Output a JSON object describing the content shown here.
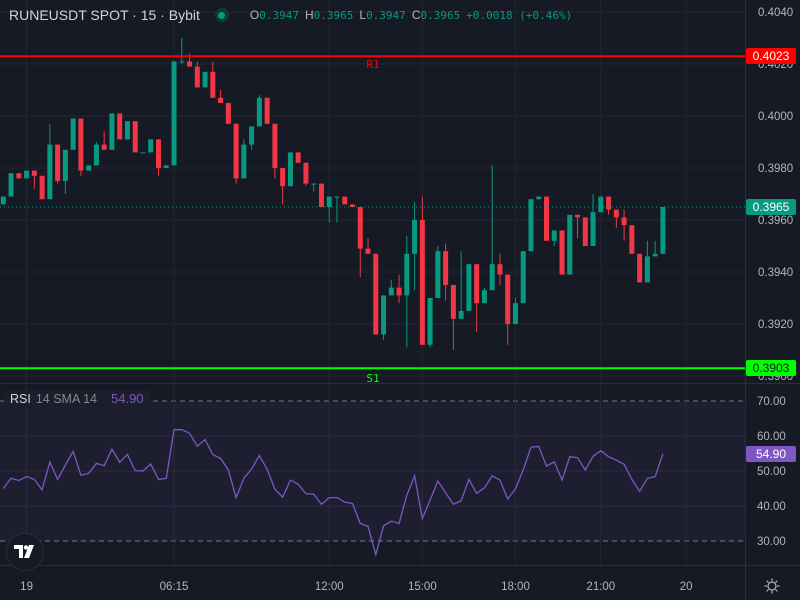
{
  "header": {
    "symbol": "RUNEUSDT SPOT · 15 · Bybit",
    "ohlc": {
      "o_label": "O",
      "open": "0.3947",
      "h_label": "H",
      "high": "0.3965",
      "l_label": "L",
      "low": "0.3947",
      "c_label": "C",
      "close": "0.3965",
      "change": "+0.0018 (+0.46%)"
    },
    "status_icon": "market-open-dot-icon"
  },
  "colors": {
    "up": "#089981",
    "down": "#f23645",
    "rsi": "#7e57c2",
    "resistance": "#ff0000",
    "support": "#00ff00",
    "background": "#161a25",
    "grid": "#242733"
  },
  "levels": [
    {
      "name": "R1",
      "label": "R1",
      "price": 0.4023,
      "tag": "0.4023",
      "color": "#ff0000"
    },
    {
      "name": "S1",
      "label": "S1",
      "price": 0.3903,
      "tag": "0.3903",
      "color": "#00ff00"
    }
  ],
  "last_price": {
    "price": 0.3965,
    "tag": "0.3965",
    "color": "#089981"
  },
  "rsi": {
    "name": "RSI",
    "params": "14 SMA 14",
    "value": "54.90",
    "upper_band": 70,
    "lower_band": 30
  },
  "bottom": {
    "logo": "TV",
    "settings_icon": "gear-icon"
  },
  "chart_data": [
    {
      "type": "candlestick",
      "timeframe": "15",
      "ylim": [
        0.3897,
        0.4044
      ],
      "y_ticks": [
        "0.4040",
        "0.4020",
        "0.4000",
        "0.3980",
        "0.3960",
        "0.3940",
        "0.3920",
        "0.3900"
      ],
      "y_tick_values": [
        0.404,
        0.402,
        0.4,
        0.398,
        0.396,
        0.394,
        0.392,
        0.39
      ],
      "x_ticks": [
        {
          "label": "19",
          "candle": 3
        },
        {
          "label": "06:15",
          "candle": 22
        },
        {
          "label": "12:00",
          "candle": 42
        },
        {
          "label": "15:00",
          "candle": 54
        },
        {
          "label": "18:00",
          "candle": 66
        },
        {
          "label": "21:00",
          "candle": 77
        },
        {
          "label": "20",
          "candle": 88
        }
      ],
      "grid": true,
      "ohlc_columns": [
        "open",
        "high",
        "low",
        "close"
      ],
      "candles": [
        [
          0.3966,
          0.3969,
          0.3966,
          0.3969
        ],
        [
          0.3969,
          0.3978,
          0.3969,
          0.3978
        ],
        [
          0.3978,
          0.3978,
          0.3976,
          0.3976
        ],
        [
          0.3976,
          0.3979,
          0.3976,
          0.3979
        ],
        [
          0.3979,
          0.3979,
          0.3972,
          0.3977
        ],
        [
          0.3977,
          0.3977,
          0.3968,
          0.3968
        ],
        [
          0.3968,
          0.3997,
          0.3968,
          0.3989
        ],
        [
          0.3989,
          0.3989,
          0.3974,
          0.3975
        ],
        [
          0.3975,
          0.3987,
          0.397,
          0.3987
        ],
        [
          0.3987,
          0.3999,
          0.3987,
          0.3999
        ],
        [
          0.3999,
          0.3999,
          0.3977,
          0.3979
        ],
        [
          0.3979,
          0.3981,
          0.3979,
          0.3981
        ],
        [
          0.3981,
          0.399,
          0.3981,
          0.3989
        ],
        [
          0.3989,
          0.3994,
          0.3987,
          0.3987
        ],
        [
          0.3987,
          0.4001,
          0.3987,
          0.4001
        ],
        [
          0.4001,
          0.4001,
          0.3991,
          0.3991
        ],
        [
          0.3991,
          0.3998,
          0.3991,
          0.3998
        ],
        [
          0.3998,
          0.3998,
          0.3986,
          0.3986
        ],
        [
          0.3986,
          0.3986,
          0.3986,
          0.3986
        ],
        [
          0.3986,
          0.3991,
          0.3986,
          0.3991
        ],
        [
          0.3991,
          0.3991,
          0.3977,
          0.398
        ],
        [
          0.398,
          0.3981,
          0.398,
          0.3981
        ],
        [
          0.3981,
          0.4021,
          0.3981,
          0.4021
        ],
        [
          0.4021,
          0.403,
          0.402,
          0.4021
        ],
        [
          0.4021,
          0.4024,
          0.4019,
          0.4019
        ],
        [
          0.4019,
          0.4021,
          0.4011,
          0.4011
        ],
        [
          0.4011,
          0.4017,
          0.4011,
          0.4017
        ],
        [
          0.4017,
          0.4021,
          0.4007,
          0.4007
        ],
        [
          0.4007,
          0.401,
          0.4005,
          0.4005
        ],
        [
          0.4005,
          0.4005,
          0.3997,
          0.3997
        ],
        [
          0.3997,
          0.3997,
          0.3974,
          0.3976
        ],
        [
          0.3976,
          0.3991,
          0.3976,
          0.3989
        ],
        [
          0.3989,
          0.3996,
          0.3987,
          0.3996
        ],
        [
          0.3996,
          0.4008,
          0.3996,
          0.4007
        ],
        [
          0.4007,
          0.4007,
          0.3997,
          0.3997
        ],
        [
          0.3997,
          0.3997,
          0.3976,
          0.398
        ],
        [
          0.398,
          0.398,
          0.3966,
          0.3973
        ],
        [
          0.3973,
          0.3986,
          0.3973,
          0.3986
        ],
        [
          0.3986,
          0.3986,
          0.3982,
          0.3982
        ],
        [
          0.3982,
          0.3982,
          0.3973,
          0.3974
        ],
        [
          0.3974,
          0.3974,
          0.3971,
          0.3974
        ],
        [
          0.3974,
          0.3974,
          0.3965,
          0.3965
        ],
        [
          0.3965,
          0.3969,
          0.3959,
          0.3969
        ],
        [
          0.3969,
          0.3969,
          0.3959,
          0.3969
        ],
        [
          0.3969,
          0.3969,
          0.3966,
          0.3966
        ],
        [
          0.3966,
          0.3966,
          0.3965,
          0.3965
        ],
        [
          0.3965,
          0.3965,
          0.3938,
          0.3949
        ],
        [
          0.3949,
          0.3953,
          0.3947,
          0.3947
        ],
        [
          0.3947,
          0.3947,
          0.3916,
          0.3916
        ],
        [
          0.3916,
          0.3931,
          0.3914,
          0.3931
        ],
        [
          0.3931,
          0.3937,
          0.3931,
          0.3934
        ],
        [
          0.3934,
          0.3939,
          0.3928,
          0.3931
        ],
        [
          0.3931,
          0.3954,
          0.3911,
          0.3947
        ],
        [
          0.3947,
          0.3967,
          0.3933,
          0.396
        ],
        [
          0.396,
          0.3969,
          0.3912,
          0.3912
        ],
        [
          0.3912,
          0.393,
          0.3911,
          0.393
        ],
        [
          0.393,
          0.395,
          0.393,
          0.3948
        ],
        [
          0.3948,
          0.3951,
          0.3929,
          0.3935
        ],
        [
          0.3935,
          0.3935,
          0.391,
          0.3922
        ],
        [
          0.3922,
          0.3948,
          0.3922,
          0.3925
        ],
        [
          0.3925,
          0.3943,
          0.3925,
          0.3943
        ],
        [
          0.3943,
          0.3943,
          0.3917,
          0.3928
        ],
        [
          0.3928,
          0.3934,
          0.3928,
          0.3933
        ],
        [
          0.3933,
          0.3981,
          0.3933,
          0.3943
        ],
        [
          0.3943,
          0.3947,
          0.3935,
          0.3939
        ],
        [
          0.3939,
          0.3939,
          0.3912,
          0.392
        ],
        [
          0.392,
          0.393,
          0.392,
          0.3928
        ],
        [
          0.3928,
          0.3948,
          0.3928,
          0.3948
        ],
        [
          0.3948,
          0.3968,
          0.3948,
          0.3968
        ],
        [
          0.3968,
          0.3969,
          0.3968,
          0.3969
        ],
        [
          0.3969,
          0.3969,
          0.3952,
          0.3952
        ],
        [
          0.3952,
          0.3956,
          0.395,
          0.3956
        ],
        [
          0.3956,
          0.3956,
          0.3939,
          0.3939
        ],
        [
          0.3939,
          0.3962,
          0.3939,
          0.3962
        ],
        [
          0.3962,
          0.3962,
          0.3953,
          0.3961
        ],
        [
          0.3961,
          0.3961,
          0.395,
          0.395
        ],
        [
          0.395,
          0.397,
          0.395,
          0.3963
        ],
        [
          0.3963,
          0.3969,
          0.3963,
          0.3969
        ],
        [
          0.3969,
          0.3969,
          0.3962,
          0.3964
        ],
        [
          0.3964,
          0.3964,
          0.3957,
          0.3961
        ],
        [
          0.3961,
          0.3964,
          0.3952,
          0.3958
        ],
        [
          0.3958,
          0.3958,
          0.3947,
          0.3947
        ],
        [
          0.3947,
          0.3947,
          0.3936,
          0.3936
        ],
        [
          0.3936,
          0.3952,
          0.3936,
          0.3946
        ],
        [
          0.3946,
          0.3952,
          0.3946,
          0.3947
        ],
        [
          0.3947,
          0.3965,
          0.3947,
          0.3965
        ]
      ]
    },
    {
      "type": "line",
      "name": "RSI",
      "ylim": [
        26,
        72
      ],
      "y_ticks": [
        "70.00",
        "60.00",
        "50.00",
        "40.00",
        "30.00"
      ],
      "y_tick_values": [
        70,
        60,
        50,
        40,
        30
      ],
      "grid": true,
      "values": [
        45.0,
        47.9,
        47.3,
        48.4,
        47.6,
        44.6,
        52.6,
        47.6,
        51.7,
        55.6,
        48.8,
        49.3,
        52.2,
        51.5,
        56.2,
        52.5,
        54.7,
        50.1,
        50.0,
        52.0,
        47.6,
        47.9,
        61.8,
        61.8,
        60.8,
        57.1,
        59.0,
        54.7,
        53.6,
        50.3,
        42.4,
        47.9,
        50.6,
        54.4,
        50.5,
        44.8,
        42.5,
        47.4,
        46.2,
        43.5,
        43.4,
        40.5,
        42.4,
        42.4,
        41.1,
        40.7,
        35.0,
        34.2,
        26.1,
        34.3,
        35.7,
        35.0,
        43.1,
        48.6,
        36.4,
        41.7,
        47.1,
        43.8,
        40.5,
        41.5,
        47.6,
        43.6,
        45.2,
        48.6,
        47.4,
        42.0,
        44.9,
        50.3,
        56.8,
        57.0,
        51.4,
        52.6,
        47.4,
        54.1,
        53.8,
        50.3,
        54.2,
        55.8,
        54.1,
        53.1,
        51.9,
        47.6,
        44.2,
        47.9,
        48.4,
        54.9
      ]
    }
  ]
}
